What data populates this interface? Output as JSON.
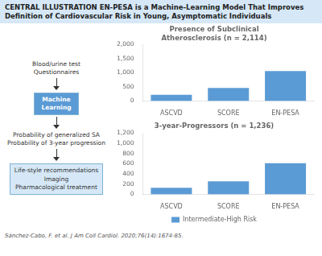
{
  "title": "CENTRAL ILLUSTRATION EN-PESA is a Machine-Learning Model That Improves Definition of Cardiovascular Risk in Young, Asymptomatic Individuals",
  "annotations": [
    "Blood/urine test\nQuestionnaires",
    "Machine\nLearning",
    "Probability of generalized SA",
    "Probability of 3-year progression",
    "Life-style recommendations\nImaging\nPharmacological treatment",
    "Sánchez-Cabo, F. et al. J Am Coll Cardiol. 2020;76(14):1674-85."
  ],
  "chart_data": [
    {
      "type": "bar",
      "title": "Presence of Subclinical\nAtherosclerosis (n = 2,114)",
      "categories": [
        "ASCVD",
        "SCORE",
        "EN-PESA"
      ],
      "values": [
        220,
        460,
        1060
      ],
      "color": "#5b9bd5",
      "ylim": [
        0,
        2000
      ],
      "yticks": [
        0,
        500,
        {
          "value": 1000,
          "label": "1,000"
        },
        {
          "value": 1500,
          "label": "1,500"
        },
        {
          "value": 2000,
          "label": "2,000"
        }
      ],
      "grid": false
    },
    {
      "type": "bar",
      "title": "3-year-Progressors (n = 1,236)",
      "categories": [
        "ASCVD",
        "SCORE",
        "EN-PESA"
      ],
      "series": [
        {
          "name": "Intermediate-High Risk",
          "color": "#5b9bd5",
          "values": [
            130,
            255,
            610
          ]
        }
      ],
      "ylim": [
        0,
        1200
      ],
      "yticks": [
        0,
        200,
        400,
        600,
        800,
        {
          "value": 1000,
          "label": "1,000"
        },
        {
          "value": 1200,
          "label": "1,200"
        }
      ],
      "grid": false,
      "legend": "bottom"
    }
  ]
}
